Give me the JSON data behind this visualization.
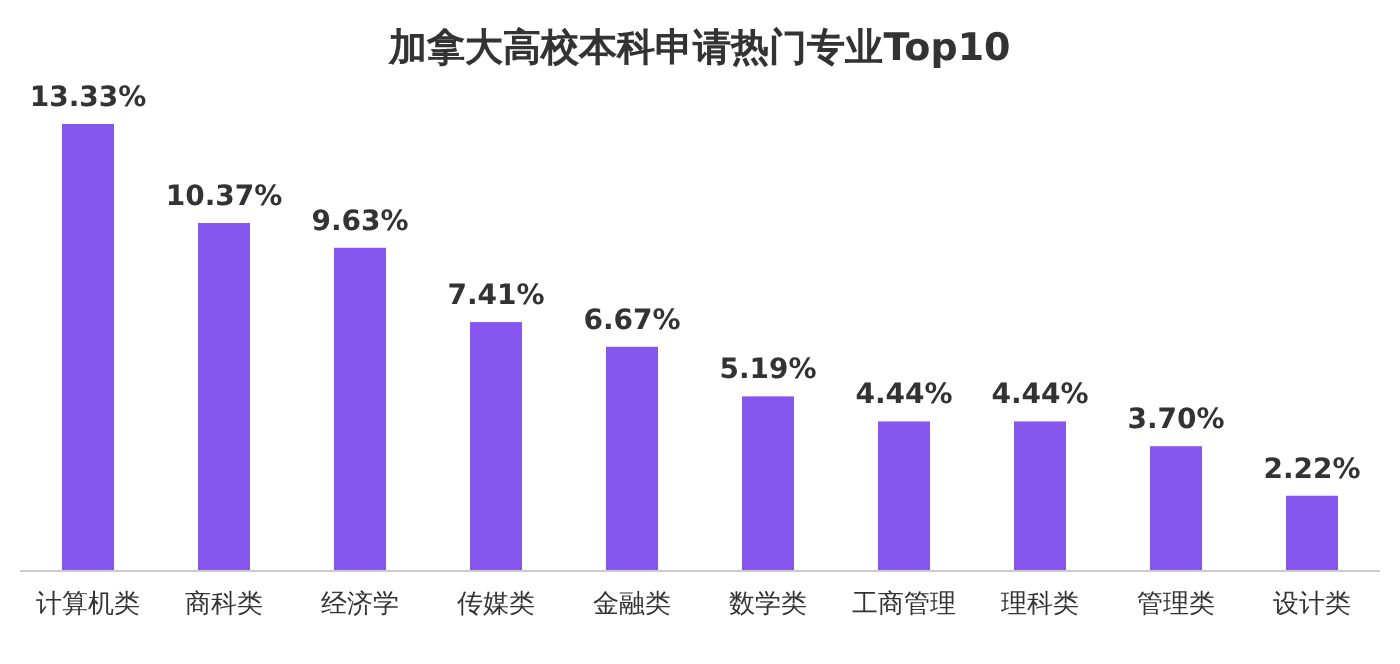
{
  "chart_data": {
    "type": "bar",
    "title": "加拿大高校本科申请热门专业Top10",
    "categories": [
      "计算机类",
      "商科类",
      "经济学",
      "传媒类",
      "金融类",
      "数学类",
      "工商管理",
      "理科类",
      "管理类",
      "设计类"
    ],
    "values": [
      13.33,
      10.37,
      9.63,
      7.41,
      6.67,
      5.19,
      4.44,
      4.44,
      3.7,
      2.22
    ],
    "value_labels": [
      "13.33%",
      "10.37%",
      "9.63%",
      "7.41%",
      "6.67%",
      "5.19%",
      "4.44%",
      "4.44%",
      "3.70%",
      "2.22%"
    ],
    "color": "#8656ee"
  }
}
